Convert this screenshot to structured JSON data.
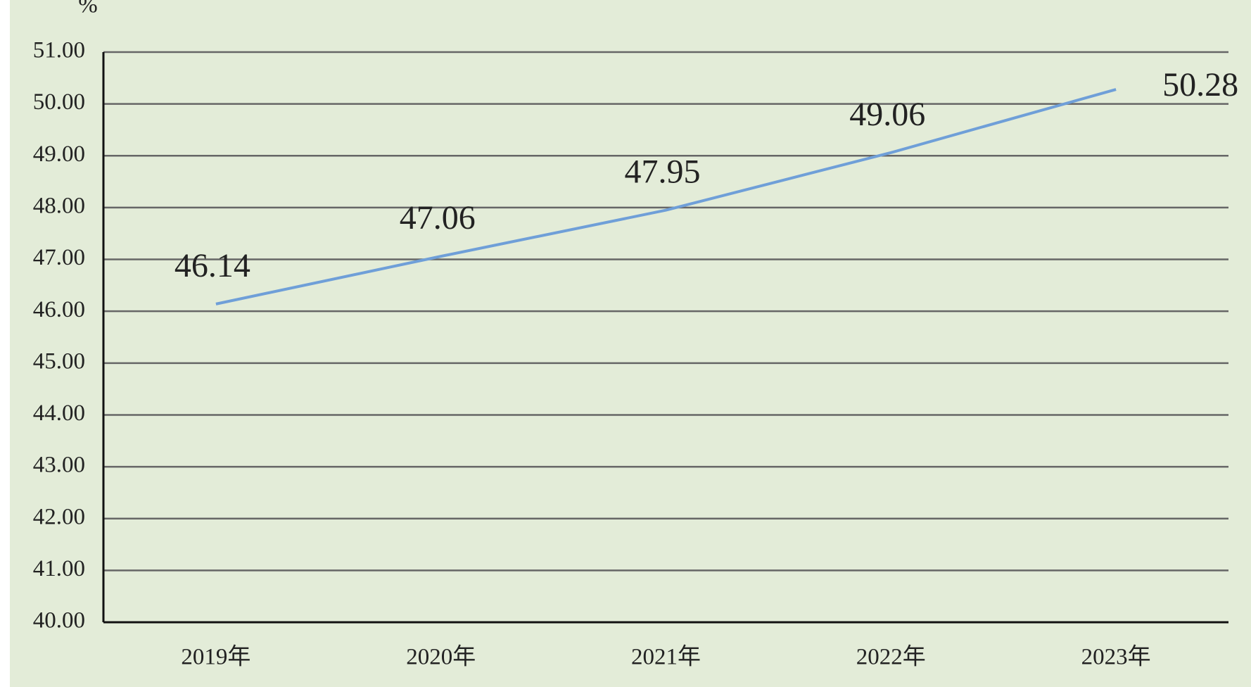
{
  "chart_data": {
    "type": "line",
    "y_axis_label": "%",
    "categories": [
      "2019年",
      "2020年",
      "2021年",
      "2022年",
      "2023年"
    ],
    "series": [
      {
        "color": "#6f9fd8",
        "values": [
          46.14,
          47.06,
          47.95,
          49.06,
          50.28
        ]
      }
    ],
    "ylim": [
      40,
      51
    ],
    "yticks": [
      {
        "value": 40,
        "label": "40.00"
      },
      {
        "value": 41,
        "label": "41.00"
      },
      {
        "value": 42,
        "label": "42.00"
      },
      {
        "value": 43,
        "label": "43.00"
      },
      {
        "value": 44,
        "label": "44.00"
      },
      {
        "value": 45,
        "label": "45.00"
      },
      {
        "value": 46,
        "label": "46.00"
      },
      {
        "value": 47,
        "label": "47.00"
      },
      {
        "value": 48,
        "label": "48.00"
      },
      {
        "value": 49,
        "label": "49.00"
      },
      {
        "value": 50,
        "label": "50.00"
      },
      {
        "value": 51,
        "label": "51.00"
      }
    ],
    "grid": true
  }
}
